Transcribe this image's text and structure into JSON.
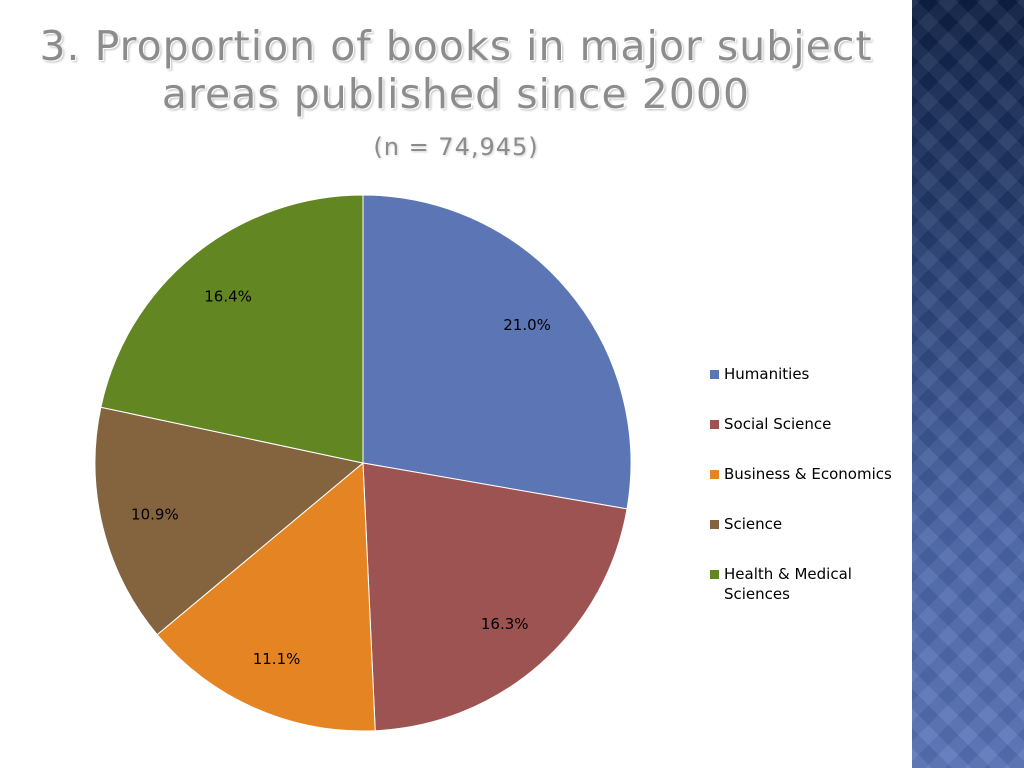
{
  "slide": {
    "title_line1": "3. Proportion of books in major subject",
    "title_line2": "areas published since 2000",
    "subtitle": "(n = 74,945)"
  },
  "chart_data": {
    "type": "pie",
    "categories": [
      "Humanities",
      "Social Science",
      "Business & Economics",
      "Science",
      "Health & Medical Sciences"
    ],
    "values": [
      21.0,
      16.3,
      11.1,
      10.9,
      16.4
    ],
    "labels": [
      "21.0%",
      "16.3%",
      "11.1%",
      "10.9%",
      "16.4%"
    ],
    "colors": [
      "#5b75b5",
      "#9c5352",
      "#e58422",
      "#84633f",
      "#628622"
    ],
    "legend_position": "right",
    "start": "top, clockwise"
  }
}
